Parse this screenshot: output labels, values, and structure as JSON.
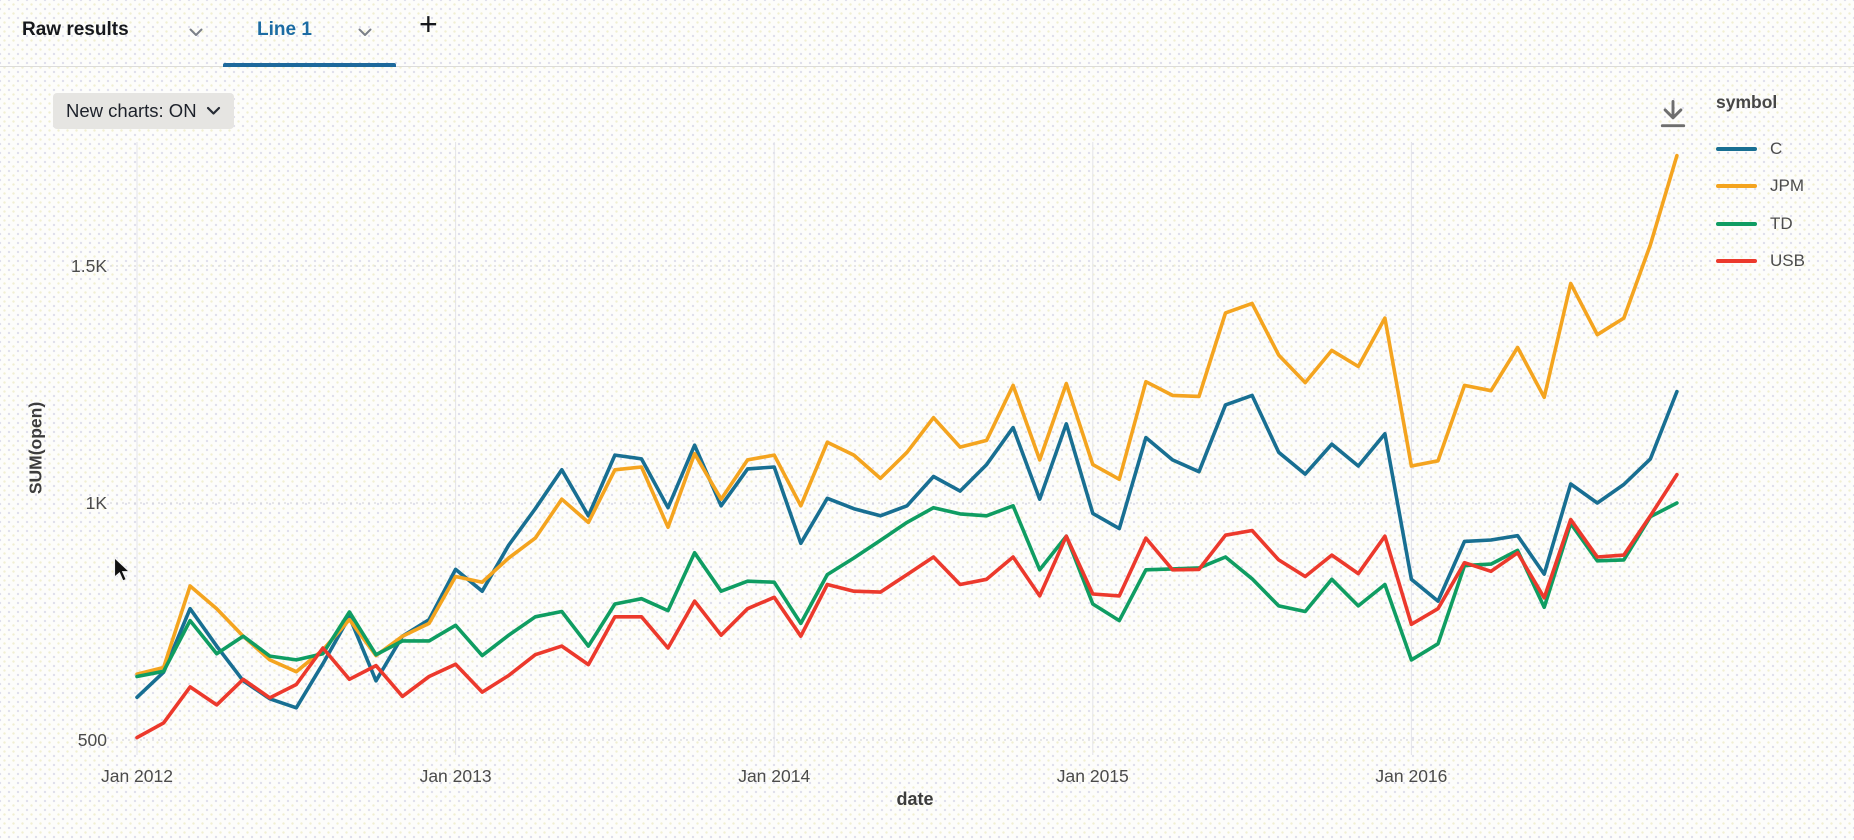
{
  "tab_bar": {
    "tabs": [
      {
        "label": "Raw results",
        "active": false
      },
      {
        "label": "Line 1",
        "active": true
      }
    ],
    "add_button_label": "+"
  },
  "toolbar": {
    "new_charts_label": "New charts: ON"
  },
  "legend": {
    "title": "symbol"
  },
  "chart_data": {
    "type": "line",
    "title": "",
    "xlabel": "date",
    "ylabel": "SUM(open)",
    "x_unit": "month",
    "n_points": 59,
    "x_start": "Jan 2012",
    "legend_position": "top-right",
    "grid": true,
    "ylim": [
      500,
      1500
    ],
    "y_ticks": [
      {
        "value": 500,
        "label": "500"
      },
      {
        "value": 1000,
        "label": "1K"
      },
      {
        "value": 1500,
        "label": "1.5K"
      }
    ],
    "x_ticks": [
      {
        "month_index": 0,
        "label": "Jan 2012"
      },
      {
        "month_index": 12,
        "label": "Jan 2013"
      },
      {
        "month_index": 24,
        "label": "Jan 2014"
      },
      {
        "month_index": 36,
        "label": "Jan 2015"
      },
      {
        "month_index": 48,
        "label": "Jan 2016"
      }
    ],
    "series": [
      {
        "name": "C",
        "color": "#186f92",
        "values": [
          590,
          643,
          777,
          698,
          625,
          587,
          568,
          661,
          760,
          625,
          719,
          754,
          860,
          814,
          911,
          988,
          1070,
          973,
          1101,
          1093,
          990,
          1122,
          994,
          1072,
          1076,
          915,
          1010,
          988,
          973,
          994,
          1056,
          1025,
          1081,
          1159,
          1008,
          1167,
          978,
          946,
          1138,
          1091,
          1066,
          1207,
          1227,
          1107,
          1061,
          1124,
          1078,
          1146,
          839,
          793,
          919,
          922,
          931,
          850,
          1040,
          1000,
          1039,
          1093,
          1235
        ]
      },
      {
        "name": "JPM",
        "color": "#f4a41f",
        "values": [
          639,
          653,
          825,
          777,
          719,
          669,
          644,
          690,
          754,
          678,
          719,
          746,
          845,
          833,
          884,
          926,
          1008,
          959,
          1070,
          1076,
          949,
          1104,
          1008,
          1091,
          1101,
          994,
          1128,
          1101,
          1052,
          1107,
          1180,
          1118,
          1132,
          1248,
          1091,
          1252,
          1081,
          1050,
          1256,
          1227,
          1225,
          1401,
          1421,
          1312,
          1254,
          1322,
          1288,
          1390,
          1078,
          1089,
          1248,
          1237,
          1328,
          1223,
          1463,
          1355,
          1390,
          1545,
          1733
        ]
      },
      {
        "name": "TD",
        "color": "#0f9d62",
        "values": [
          634,
          645,
          752,
          682,
          719,
          677,
          669,
          682,
          770,
          680,
          709,
          709,
          742,
          678,
          721,
          760,
          771,
          698,
          787,
          798,
          773,
          895,
          814,
          835,
          833,
          746,
          849,
          884,
          921,
          959,
          990,
          977,
          973,
          994,
          859,
          930,
          787,
          752,
          859,
          861,
          863,
          886,
          840,
          783,
          771,
          839,
          783,
          828,
          669,
          703,
          868,
          871,
          900,
          780,
          957,
          878,
          880,
          971,
          1000
        ]
      },
      {
        "name": "USB",
        "color": "#ec392c",
        "values": [
          505,
          536,
          612,
          574,
          628,
          589,
          617,
          694,
          628,
          657,
          592,
          634,
          660,
          601,
          636,
          680,
          698,
          659,
          760,
          760,
          694,
          793,
          721,
          777,
          801,
          719,
          828,
          814,
          812,
          849,
          886,
          828,
          839,
          886,
          804,
          930,
          808,
          804,
          926,
          859,
          860,
          932,
          942,
          880,
          845,
          890,
          851,
          930,
          744,
          777,
          874,
          856,
          895,
          800,
          965,
          886,
          890,
          973,
          1060
        ]
      }
    ]
  }
}
